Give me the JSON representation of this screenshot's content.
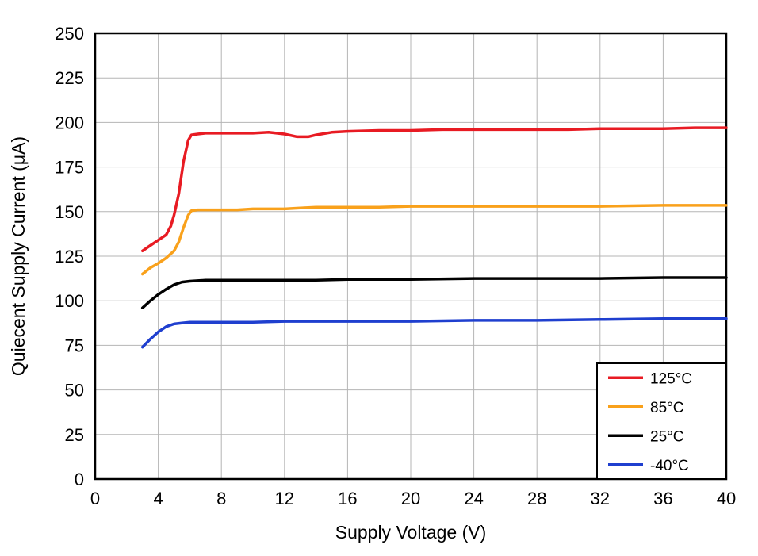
{
  "chart_data": {
    "type": "line",
    "title": "",
    "xlabel": "Supply Voltage (V)",
    "ylabel": "Quiecent Supply Current (μA)",
    "xlim": [
      0,
      40
    ],
    "ylim": [
      0,
      250
    ],
    "xticks": [
      0,
      4,
      8,
      12,
      16,
      20,
      24,
      28,
      32,
      36,
      40
    ],
    "yticks": [
      0,
      25,
      50,
      75,
      100,
      125,
      150,
      175,
      200,
      225,
      250
    ],
    "grid": true,
    "grid_color": "#b5b5b5",
    "frame_color": "#000000",
    "legend_position": "bottom-right",
    "series": [
      {
        "name": "125°C",
        "color": "#e81b23",
        "points": [
          [
            3,
            128
          ],
          [
            3.5,
            131
          ],
          [
            4,
            134
          ],
          [
            4.5,
            137
          ],
          [
            4.8,
            142
          ],
          [
            5,
            148
          ],
          [
            5.3,
            160
          ],
          [
            5.6,
            178
          ],
          [
            5.9,
            190
          ],
          [
            6.1,
            193
          ],
          [
            6.5,
            193.5
          ],
          [
            7,
            194
          ],
          [
            8,
            194
          ],
          [
            9,
            194
          ],
          [
            10,
            194
          ],
          [
            11,
            194.5
          ],
          [
            12,
            193.5
          ],
          [
            12.8,
            192
          ],
          [
            13.5,
            192
          ],
          [
            14,
            193
          ],
          [
            15,
            194.5
          ],
          [
            16,
            195
          ],
          [
            18,
            195.5
          ],
          [
            20,
            195.5
          ],
          [
            22,
            196
          ],
          [
            24,
            196
          ],
          [
            26,
            196
          ],
          [
            28,
            196
          ],
          [
            30,
            196
          ],
          [
            32,
            196.5
          ],
          [
            34,
            196.5
          ],
          [
            36,
            196.5
          ],
          [
            38,
            197
          ],
          [
            40,
            197
          ]
        ]
      },
      {
        "name": "85°C",
        "color": "#f9a11b",
        "points": [
          [
            3,
            115
          ],
          [
            3.5,
            118.5
          ],
          [
            4,
            121
          ],
          [
            4.5,
            124
          ],
          [
            5,
            128
          ],
          [
            5.3,
            133
          ],
          [
            5.6,
            141
          ],
          [
            5.9,
            148
          ],
          [
            6.1,
            150.5
          ],
          [
            6.5,
            151
          ],
          [
            7,
            151
          ],
          [
            8,
            151
          ],
          [
            9,
            151
          ],
          [
            10,
            151.5
          ],
          [
            11,
            151.5
          ],
          [
            12,
            151.5
          ],
          [
            13,
            152
          ],
          [
            14,
            152.5
          ],
          [
            16,
            152.5
          ],
          [
            18,
            152.5
          ],
          [
            20,
            153
          ],
          [
            24,
            153
          ],
          [
            28,
            153
          ],
          [
            32,
            153
          ],
          [
            36,
            153.5
          ],
          [
            40,
            153.5
          ]
        ]
      },
      {
        "name": "25°C",
        "color": "#000000",
        "points": [
          [
            3,
            96
          ],
          [
            3.5,
            100
          ],
          [
            4,
            103.5
          ],
          [
            4.5,
            106.5
          ],
          [
            5,
            109
          ],
          [
            5.5,
            110.5
          ],
          [
            6,
            111
          ],
          [
            7,
            111.5
          ],
          [
            8,
            111.5
          ],
          [
            10,
            111.5
          ],
          [
            12,
            111.5
          ],
          [
            14,
            111.5
          ],
          [
            16,
            112
          ],
          [
            20,
            112
          ],
          [
            24,
            112.5
          ],
          [
            28,
            112.5
          ],
          [
            32,
            112.5
          ],
          [
            36,
            113
          ],
          [
            40,
            113
          ]
        ]
      },
      {
        "name": "-40°C",
        "color": "#1f3fcf",
        "points": [
          [
            3,
            74
          ],
          [
            3.5,
            78.5
          ],
          [
            4,
            82.5
          ],
          [
            4.5,
            85.5
          ],
          [
            5,
            87
          ],
          [
            5.5,
            87.5
          ],
          [
            6,
            88
          ],
          [
            7,
            88
          ],
          [
            8,
            88
          ],
          [
            10,
            88
          ],
          [
            12,
            88.5
          ],
          [
            14,
            88.5
          ],
          [
            16,
            88.5
          ],
          [
            20,
            88.5
          ],
          [
            24,
            89
          ],
          [
            28,
            89
          ],
          [
            32,
            89.5
          ],
          [
            36,
            90
          ],
          [
            40,
            90
          ]
        ]
      }
    ]
  }
}
